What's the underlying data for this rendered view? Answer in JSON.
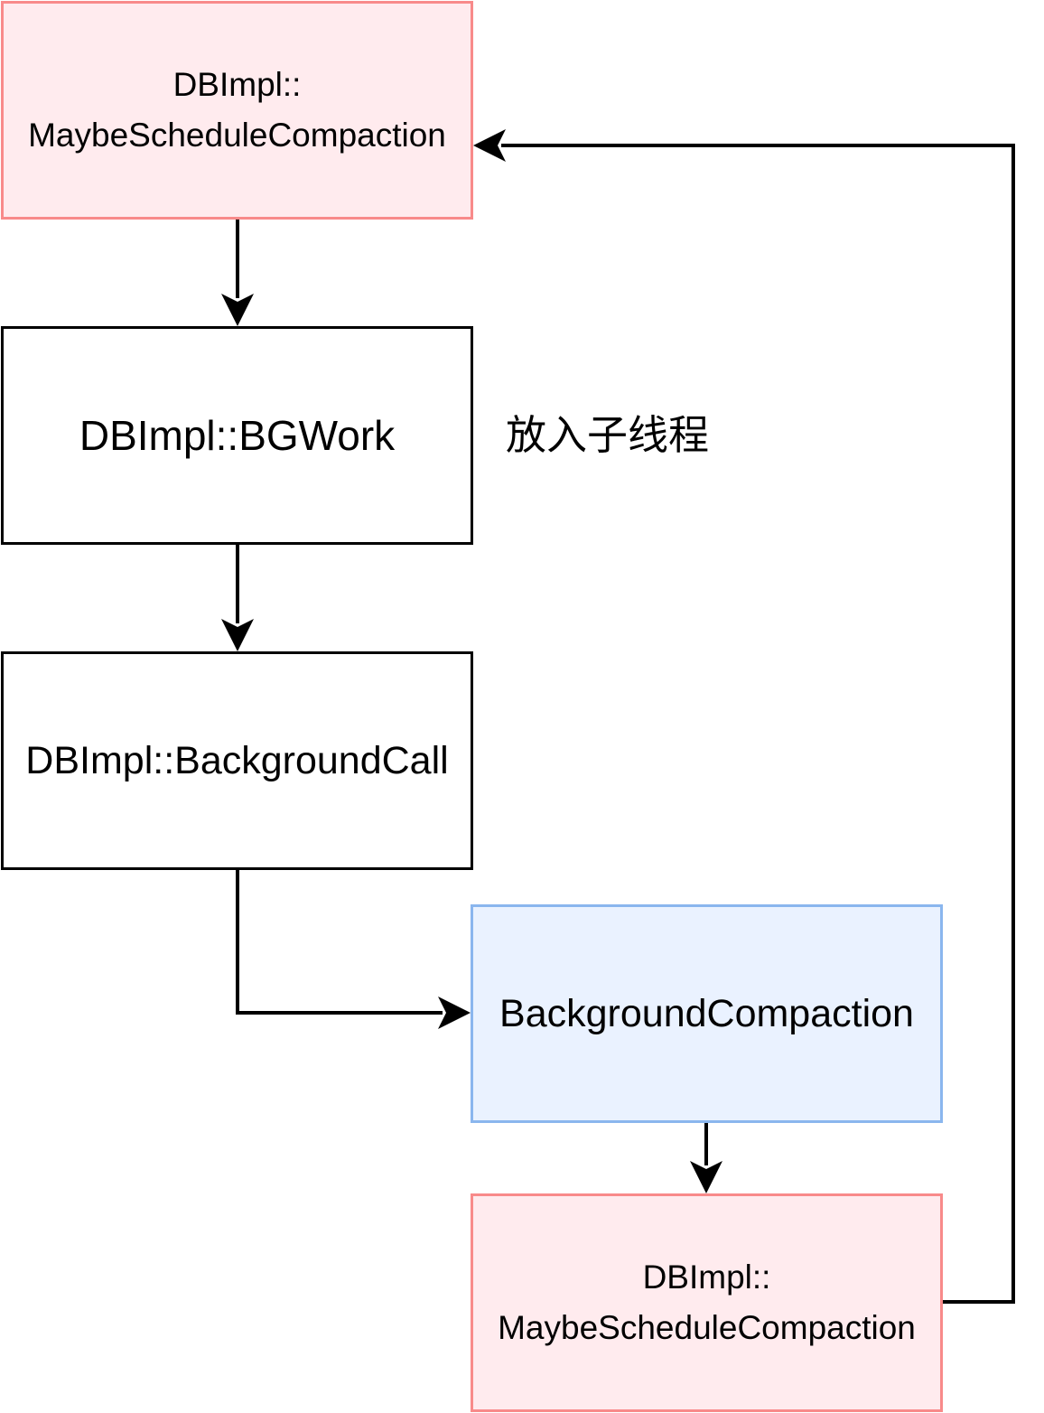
{
  "nodes": {
    "maybe_schedule_top": {
      "line1": "DBImpl::",
      "line2": "MaybeScheduleCompaction"
    },
    "bg_work": {
      "label": "DBImpl::BGWork"
    },
    "background_call": {
      "label": "DBImpl::BackgroundCall"
    },
    "background_compaction": {
      "label": "BackgroundCompaction"
    },
    "maybe_schedule_bottom": {
      "line1": "DBImpl::",
      "line2": "MaybeScheduleCompaction"
    }
  },
  "annotation": {
    "text": "放入子线程"
  },
  "colors": {
    "pink_fill": "#ffebee",
    "pink_border": "#f88a8a",
    "blue_fill": "#eaf2ff",
    "blue_border": "#8ab6ee",
    "edge": "#000000"
  }
}
